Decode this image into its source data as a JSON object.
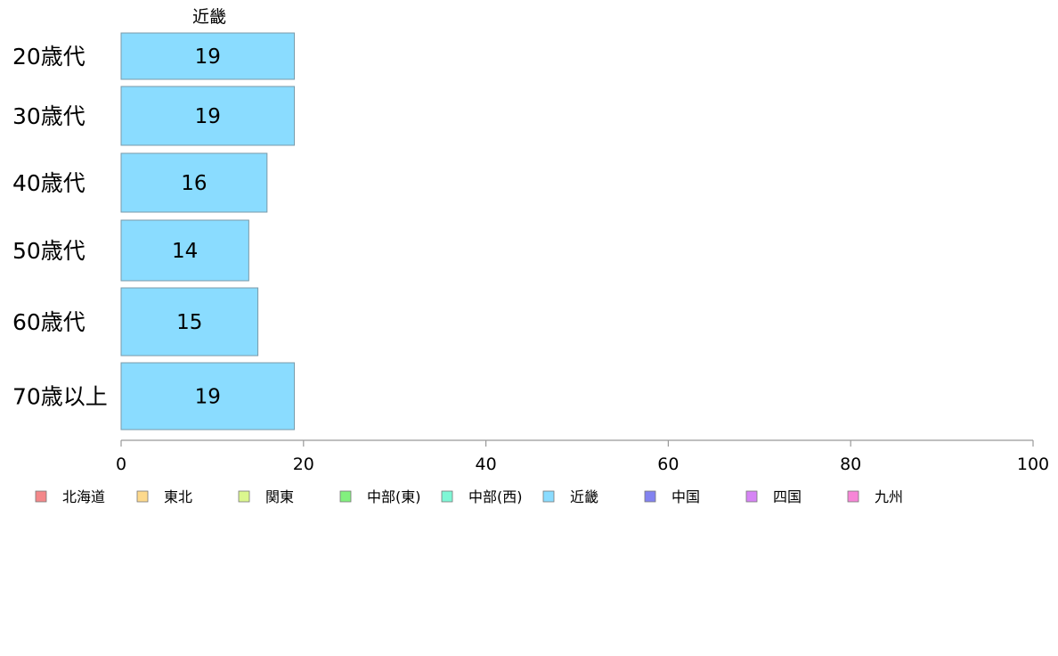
{
  "chart_data": {
    "type": "bar",
    "orientation": "horizontal",
    "series_header": "近畿",
    "categories": [
      "20歳代",
      "30歳代",
      "40歳代",
      "50歳代",
      "60歳代",
      "70歳以上"
    ],
    "values": [
      19,
      19,
      16,
      14,
      15,
      19
    ],
    "value_labels": [
      "19",
      "19",
      "16",
      "14",
      "15",
      "19"
    ],
    "xlim": [
      0,
      100
    ],
    "x_ticks": [
      0,
      20,
      40,
      60,
      80,
      100
    ],
    "x_tick_labels": [
      "0",
      "20",
      "40",
      "60",
      "80",
      "100"
    ],
    "grid": false,
    "bar_color": "#8adcff",
    "legend_placement": "bottom",
    "legend": [
      {
        "label": "北海道",
        "color": "#f4888a"
      },
      {
        "label": "東北",
        "color": "#fdd98c"
      },
      {
        "label": "関東",
        "color": "#dbf78e"
      },
      {
        "label": "中部(東)",
        "color": "#82f17e"
      },
      {
        "label": "中部(西)",
        "color": "#7ff7d6"
      },
      {
        "label": "近畿",
        "color": "#8adcff"
      },
      {
        "label": "中国",
        "color": "#8383f0"
      },
      {
        "label": "四国",
        "color": "#d684f5"
      },
      {
        "label": "九州",
        "color": "#f786d7"
      }
    ]
  }
}
